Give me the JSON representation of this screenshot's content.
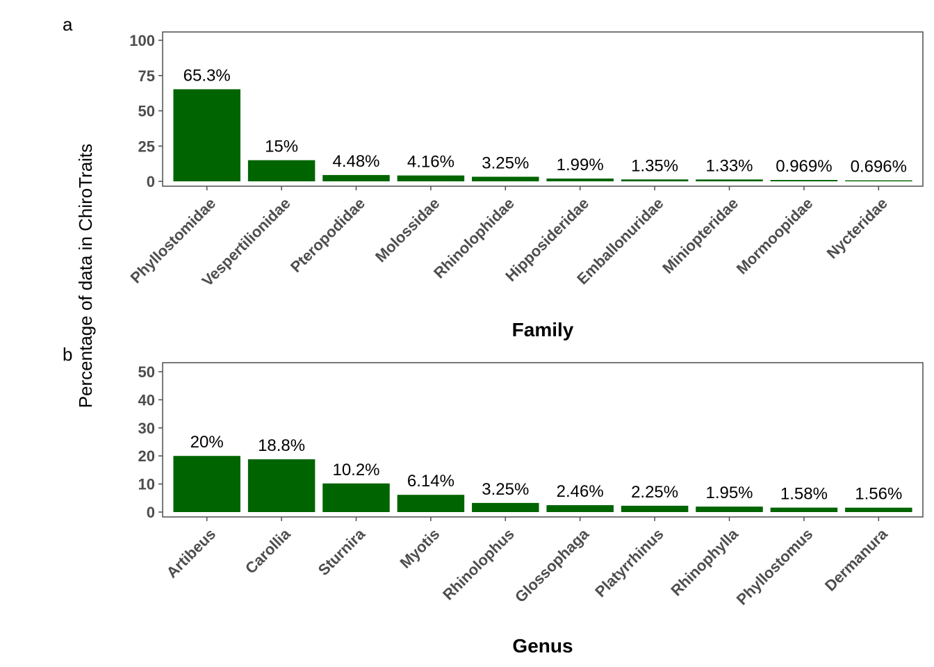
{
  "figure": {
    "ylabel": "Percentage of data in ChiroTraits",
    "bar_color": "#006400",
    "axis_color": "#4d4d4d"
  },
  "chart_data": [
    {
      "type": "bar",
      "panel_tag": "a",
      "xlabel": "Family",
      "ylabel": "Percentage of data in ChiroTraits",
      "ylim": [
        0,
        100
      ],
      "yticks": [
        0,
        25,
        50,
        75,
        100
      ],
      "grid": false,
      "categories": [
        "Phyllostomidae",
        "Vespertilionidae",
        "Pteropodidae",
        "Molossidae",
        "Rhinolophidae",
        "Hipposideridae",
        "Emballonuridae",
        "Miniopteridae",
        "Mormoopidae",
        "Nycteridae"
      ],
      "values": [
        65.3,
        15,
        4.48,
        4.16,
        3.25,
        1.99,
        1.35,
        1.33,
        0.969,
        0.696
      ],
      "labels": [
        "65.3%",
        "15%",
        "4.48%",
        "4.16%",
        "3.25%",
        "1.99%",
        "1.35%",
        "1.33%",
        "0.969%",
        "0.696%"
      ]
    },
    {
      "type": "bar",
      "panel_tag": "b",
      "xlabel": "Genus",
      "ylabel": "Percentage of data in ChiroTraits",
      "ylim": [
        0,
        50
      ],
      "yticks": [
        0,
        10,
        20,
        30,
        40,
        50
      ],
      "grid": false,
      "categories": [
        "Artibeus",
        "Carollia",
        "Sturnira",
        "Myotis",
        "Rhinolophus",
        "Glossophaga",
        "Platyrrhinus",
        "Rhinophylla",
        "Phyllostomus",
        "Dermanura"
      ],
      "values": [
        20,
        18.8,
        10.2,
        6.14,
        3.25,
        2.46,
        2.25,
        1.95,
        1.58,
        1.56
      ],
      "labels": [
        "20%",
        "18.8%",
        "10.2%",
        "6.14%",
        "3.25%",
        "2.46%",
        "2.25%",
        "1.95%",
        "1.58%",
        "1.56%"
      ]
    }
  ]
}
